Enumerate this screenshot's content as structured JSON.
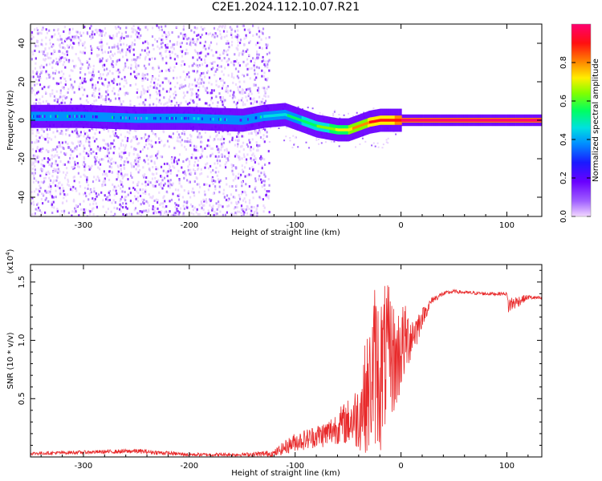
{
  "page": {
    "title": "C2E1.2024.112.10.07.R21"
  },
  "colors": {
    "snr_line": "#e8292a",
    "colormap": [
      "#e8b8ff",
      "#a259ff",
      "#7a00ff",
      "#3a00ff",
      "#0057ff",
      "#00c8ff",
      "#00ff7a",
      "#7dff00",
      "#ffea00",
      "#ff8c00",
      "#ff0000",
      "#ff0066"
    ]
  },
  "chart_data": [
    {
      "type": "heatmap",
      "title": "",
      "xlabel": "Height of straight line (km)",
      "ylabel": "Frequency (Hz)",
      "xlim": [
        -350,
        133
      ],
      "ylim": [
        -50,
        50
      ],
      "x_ticks": [
        -300,
        -200,
        -100,
        0,
        100
      ],
      "y_ticks": [
        -40,
        -20,
        0,
        20,
        40
      ],
      "colorbar": {
        "label": "Normalized spectral amplitude",
        "range": [
          0,
          1
        ],
        "ticks": [
          "0.0",
          "0.2",
          "0.4",
          "0.6",
          "0.8"
        ],
        "tick_values": [
          0.0,
          0.2,
          0.4,
          0.6,
          0.8
        ]
      },
      "ridge": {
        "x": [
          -350,
          -300,
          -250,
          -200,
          -150,
          -130,
          -110,
          -100,
          -90,
          -80,
          -70,
          -60,
          -50,
          -40,
          -30,
          -20,
          -10,
          0,
          20,
          60,
          100,
          133
        ],
        "freq_hz": [
          2,
          2,
          1,
          1,
          0,
          2,
          3,
          1,
          -1,
          -3,
          -4,
          -5,
          -5,
          -3,
          -1,
          0,
          0,
          0,
          0,
          0,
          0,
          0
        ],
        "amplitude": [
          0.25,
          0.3,
          0.25,
          0.3,
          0.3,
          0.4,
          0.45,
          0.5,
          0.55,
          0.55,
          0.6,
          0.65,
          0.7,
          0.75,
          0.8,
          0.82,
          0.85,
          0.9,
          0.92,
          0.93,
          0.93,
          0.93
        ]
      },
      "noise_background_x_range": [
        -350,
        -125
      ]
    },
    {
      "type": "line",
      "title": "",
      "xlabel": "Height of straight line (km)",
      "ylabel": "SNR (10 * v/v)",
      "y_multiplier_label": "(x10",
      "y_multiplier_exponent": "4",
      "y_multiplier_close": ")",
      "xlim": [
        -350,
        133
      ],
      "ylim": [
        0,
        16500
      ],
      "x_ticks": [
        -300,
        -200,
        -100,
        0,
        100
      ],
      "y_ticks": [
        5000,
        10000,
        15000
      ],
      "y_tick_labels": [
        "0.5",
        "1.0",
        "1.5"
      ],
      "series": [
        {
          "name": "",
          "x": [
            -350,
            -300,
            -250,
            -200,
            -150,
            -120,
            -110,
            -100,
            -90,
            -80,
            -70,
            -60,
            -50,
            -40,
            -35,
            -30,
            -25,
            -20,
            -15,
            -10,
            -5,
            0,
            5,
            10,
            15,
            20,
            30,
            40,
            50,
            60,
            80,
            100,
            101,
            120,
            133
          ],
          "y": [
            300,
            400,
            500,
            200,
            200,
            300,
            800,
            1300,
            1500,
            1800,
            2000,
            2600,
            3000,
            3500,
            5000,
            5500,
            8000,
            7000,
            8500,
            9000,
            8000,
            9500,
            10000,
            10500,
            11000,
            12000,
            13500,
            14000,
            14200,
            14100,
            14000,
            14000,
            13000,
            13700,
            13600
          ],
          "noise_amplitude": [
            150,
            150,
            200,
            150,
            150,
            300,
            600,
            800,
            900,
            1000,
            1200,
            1500,
            2000,
            3000,
            4500,
            5500,
            7000,
            7000,
            6500,
            5500,
            4500,
            4000,
            3000,
            2000,
            1500,
            800,
            300,
            200,
            150,
            150,
            150,
            150,
            800,
            200,
            150
          ]
        }
      ]
    }
  ]
}
